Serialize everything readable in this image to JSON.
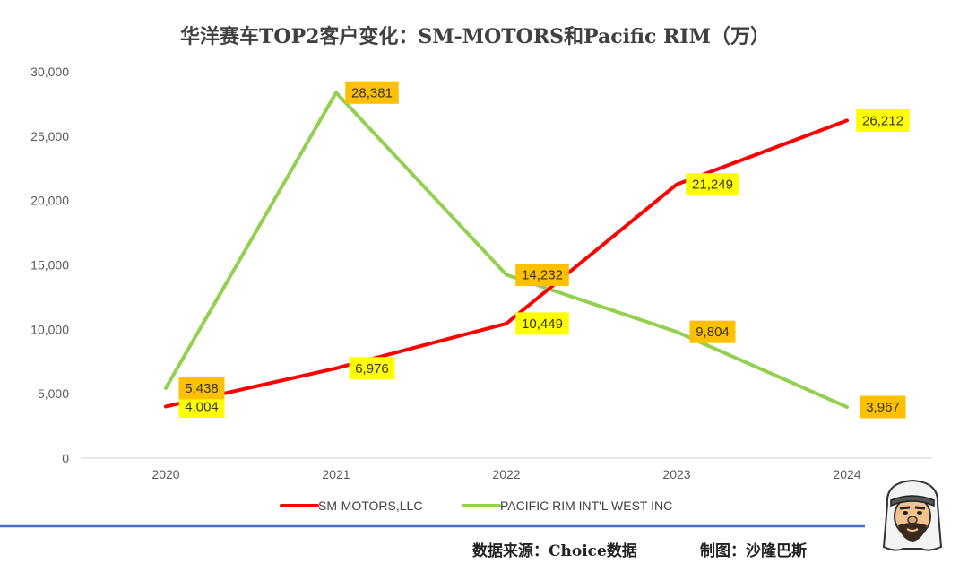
{
  "chart_data": {
    "type": "line",
    "title": "华洋赛车TOP2客户变化：SM-MOTORS和Pacific RIM（万）",
    "categories": [
      "2020",
      "2021",
      "2022",
      "2023",
      "2024"
    ],
    "ylim": [
      0,
      30000
    ],
    "yticks": [
      "0",
      "5,000",
      "10,000",
      "15,000",
      "20,000",
      "25,000",
      "30,000"
    ],
    "grid": false,
    "legend_position": "bottom",
    "series": [
      {
        "name": "SM-MOTORS,LLC",
        "color": "#ff0000",
        "label_color": "#ffff00",
        "values": [
          4004,
          6976,
          10449,
          21249,
          26212
        ],
        "labels": [
          "4,004",
          "6,976",
          "10,449",
          "21,249",
          "26,212"
        ]
      },
      {
        "name": "PACIFIC RIM INT'L WEST INC",
        "color": "#92d050",
        "label_color": "#ffc000",
        "values": [
          5438,
          28381,
          14232,
          9804,
          3967
        ],
        "labels": [
          "5,438",
          "28,381",
          "14,232",
          "9,804",
          "3,967"
        ]
      }
    ]
  },
  "footer": {
    "source": "数据来源：Choice数据",
    "credit": "制图：沙隆巴斯",
    "divider_color": "#4472c4"
  },
  "avatar_icon": "bearded-man-avatar-icon"
}
